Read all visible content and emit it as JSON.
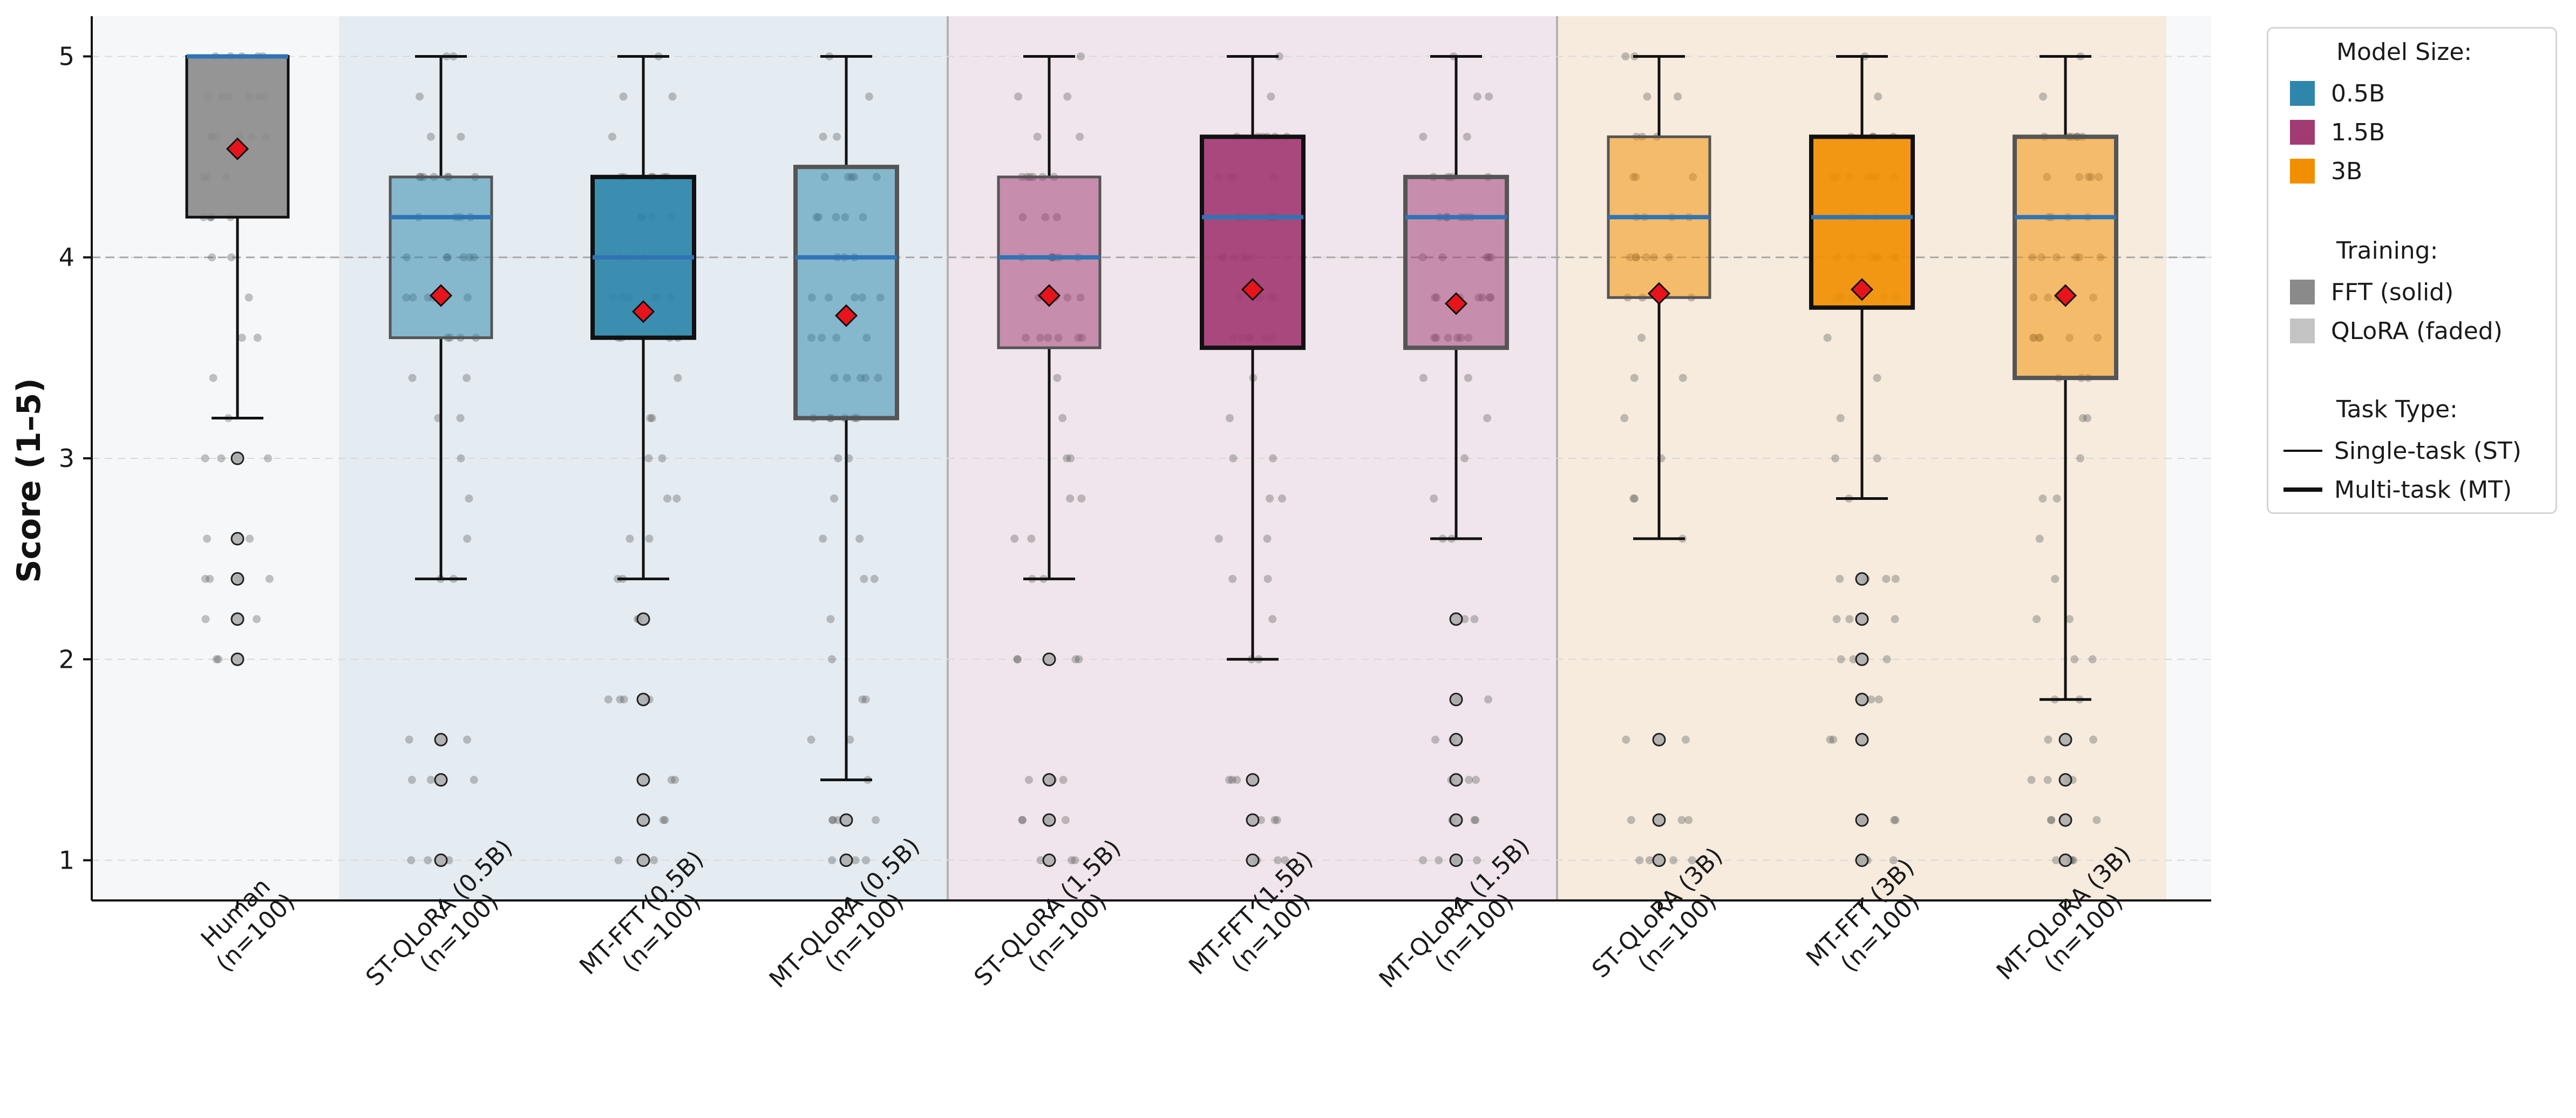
{
  "chart_data": {
    "type": "box",
    "ylabel": "Score (1–5)",
    "ylim": [
      0.8,
      5.2
    ],
    "yticks": [
      1,
      2,
      3,
      4,
      5
    ],
    "grid": "horizontal dashed",
    "reference_line": 4.0,
    "groups": [
      {
        "label": "Human",
        "color": "#8c8c8c"
      },
      {
        "label": "0.5B",
        "color": "#2e86ab"
      },
      {
        "label": "1.5B",
        "color": "#a23b72"
      },
      {
        "label": "3B",
        "color": "#f18f01"
      }
    ],
    "categories": [
      "Human\n(n=100)",
      "ST-QLoRA (0.5B)\n(n=100)",
      "MT-FFT (0.5B)\n(n=100)",
      "MT-QLoRA (0.5B)\n(n=100)",
      "ST-QLoRA (1.5B)\n(n=100)",
      "MT-FFT (1.5B)\n(n=100)",
      "MT-QLoRA (1.5B)\n(n=100)",
      "ST-QLoRA (3B)\n(n=100)",
      "MT-FFT (3B)\n(n=100)",
      "MT-QLoRA (3B)\n(n=100)"
    ],
    "boxes": [
      {
        "label": "Human",
        "group": 0,
        "training": "FFT",
        "task": "ST",
        "q1": 4.2,
        "median": 5.0,
        "q3": 5.0,
        "whisker_low": 3.2,
        "whisker_high": 5.0,
        "mean": 4.54,
        "outliers": [
          3.0,
          2.6,
          2.4,
          2.2,
          2.0
        ]
      },
      {
        "label": "ST-QLoRA (0.5B)",
        "group": 1,
        "training": "QLoRA",
        "task": "ST",
        "q1": 3.6,
        "median": 4.2,
        "q3": 4.4,
        "whisker_low": 2.4,
        "whisker_high": 5.0,
        "mean": 3.81,
        "outliers": [
          1.6,
          1.4,
          1.0
        ]
      },
      {
        "label": "MT-FFT (0.5B)",
        "group": 1,
        "training": "FFT",
        "task": "MT",
        "q1": 3.6,
        "median": 4.0,
        "q3": 4.4,
        "whisker_low": 2.4,
        "whisker_high": 5.0,
        "mean": 3.73,
        "outliers": [
          2.2,
          1.8,
          1.4,
          1.2,
          1.0
        ]
      },
      {
        "label": "MT-QLoRA (0.5B)",
        "group": 1,
        "training": "QLoRA",
        "task": "MT",
        "q1": 3.2,
        "median": 4.0,
        "q3": 4.45,
        "whisker_low": 1.4,
        "whisker_high": 5.0,
        "mean": 3.71,
        "outliers": [
          1.2,
          1.0
        ]
      },
      {
        "label": "ST-QLoRA (1.5B)",
        "group": 2,
        "training": "QLoRA",
        "task": "ST",
        "q1": 3.55,
        "median": 4.0,
        "q3": 4.4,
        "whisker_low": 2.4,
        "whisker_high": 5.0,
        "mean": 3.81,
        "outliers": [
          2.0,
          1.4,
          1.2,
          1.0
        ]
      },
      {
        "label": "MT-FFT (1.5B)",
        "group": 2,
        "training": "FFT",
        "task": "MT",
        "q1": 3.55,
        "median": 4.2,
        "q3": 4.6,
        "whisker_low": 2.0,
        "whisker_high": 5.0,
        "mean": 3.84,
        "outliers": [
          1.4,
          1.2,
          1.0
        ]
      },
      {
        "label": "MT-QLoRA (1.5B)",
        "group": 2,
        "training": "QLoRA",
        "task": "MT",
        "q1": 3.55,
        "median": 4.2,
        "q3": 4.4,
        "whisker_low": 2.6,
        "whisker_high": 5.0,
        "mean": 3.77,
        "outliers": [
          2.2,
          1.8,
          1.6,
          1.4,
          1.2,
          1.0
        ]
      },
      {
        "label": "ST-QLoRA (3B)",
        "group": 3,
        "training": "QLoRA",
        "task": "ST",
        "q1": 3.8,
        "median": 4.2,
        "q3": 4.6,
        "whisker_low": 2.6,
        "whisker_high": 5.0,
        "mean": 3.82,
        "outliers": [
          1.6,
          1.2,
          1.0
        ]
      },
      {
        "label": "MT-FFT (3B)",
        "group": 3,
        "training": "FFT",
        "task": "MT",
        "q1": 3.75,
        "median": 4.2,
        "q3": 4.6,
        "whisker_low": 2.8,
        "whisker_high": 5.0,
        "mean": 3.84,
        "outliers": [
          2.4,
          2.2,
          2.0,
          1.8,
          1.6,
          1.2,
          1.0
        ]
      },
      {
        "label": "MT-QLoRA (3B)",
        "group": 3,
        "training": "QLoRA",
        "task": "MT",
        "q1": 3.4,
        "median": 4.2,
        "q3": 4.6,
        "whisker_low": 1.8,
        "whisker_high": 5.0,
        "mean": 3.81,
        "outliers": [
          1.6,
          1.4,
          1.2,
          1.0
        ]
      }
    ],
    "median_color": "#2f74b5",
    "mean_marker_color": "#e8141b",
    "legend": {
      "placement": "outside right",
      "model_size_title": "Model Size:",
      "model_size_items": [
        {
          "label": "0.5B",
          "color": "#2e86ab"
        },
        {
          "label": "1.5B",
          "color": "#a23b72"
        },
        {
          "label": "3B",
          "color": "#f18f01"
        }
      ],
      "training_title": "Training:",
      "training_items": [
        {
          "label": "FFT (solid)",
          "color": "#8a8a8a"
        },
        {
          "label": "QLoRA (faded)",
          "color": "#c4c4c4"
        }
      ],
      "task_title": "Task Type:",
      "task_items": [
        {
          "label": "Single-task (ST)"
        },
        {
          "label": "Multi-task (MT)"
        }
      ]
    }
  }
}
